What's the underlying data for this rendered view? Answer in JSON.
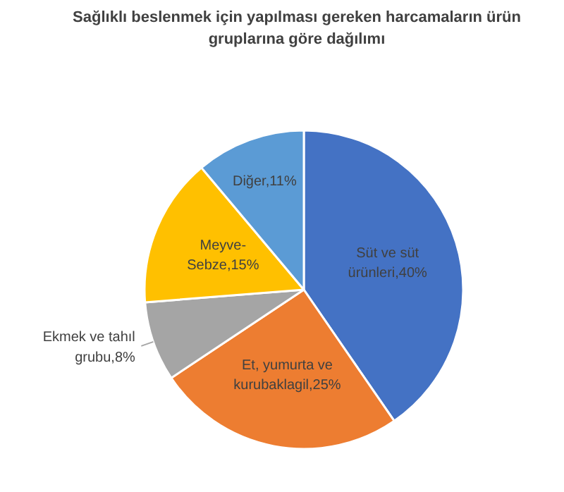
{
  "chart_data": {
    "type": "pie",
    "title": "Sağlıklı beslenmek için yapılması gereken harcamaların ürün\ngruplarına göre dağılımı",
    "categories": [
      "Süt ve süt ürünleri",
      "Et, yumurta ve kurubaklagil",
      "Ekmek ve tahıl grubu",
      "Meyve-Sebze",
      "Diğer"
    ],
    "values": [
      40,
      25,
      8,
      15,
      11
    ],
    "value_labels": [
      "40%",
      "25%",
      "8%",
      "15%",
      "11%"
    ],
    "colors": [
      "#4472c4",
      "#ed7d31",
      "#a5a5a5",
      "#ffc000",
      "#5b9bd5"
    ]
  }
}
